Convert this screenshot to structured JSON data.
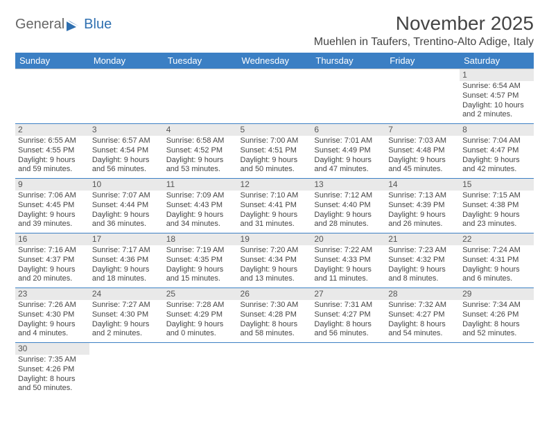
{
  "logo": {
    "text1": "General",
    "text2": "Blue"
  },
  "title": "November 2025",
  "location": "Muehlen in Taufers, Trentino-Alto Adige, Italy",
  "colors": {
    "header_bg": "#3b7fc4",
    "header_text": "#ffffff",
    "daynum_bg": "#e9e9e9",
    "row_border": "#3b7fc4",
    "text": "#444444"
  },
  "day_headers": [
    "Sunday",
    "Monday",
    "Tuesday",
    "Wednesday",
    "Thursday",
    "Friday",
    "Saturday"
  ],
  "weeks": [
    [
      null,
      null,
      null,
      null,
      null,
      null,
      {
        "n": "1",
        "sr": "Sunrise: 6:54 AM",
        "ss": "Sunset: 4:57 PM",
        "dl1": "Daylight: 10 hours",
        "dl2": "and 2 minutes."
      }
    ],
    [
      {
        "n": "2",
        "sr": "Sunrise: 6:55 AM",
        "ss": "Sunset: 4:55 PM",
        "dl1": "Daylight: 9 hours",
        "dl2": "and 59 minutes."
      },
      {
        "n": "3",
        "sr": "Sunrise: 6:57 AM",
        "ss": "Sunset: 4:54 PM",
        "dl1": "Daylight: 9 hours",
        "dl2": "and 56 minutes."
      },
      {
        "n": "4",
        "sr": "Sunrise: 6:58 AM",
        "ss": "Sunset: 4:52 PM",
        "dl1": "Daylight: 9 hours",
        "dl2": "and 53 minutes."
      },
      {
        "n": "5",
        "sr": "Sunrise: 7:00 AM",
        "ss": "Sunset: 4:51 PM",
        "dl1": "Daylight: 9 hours",
        "dl2": "and 50 minutes."
      },
      {
        "n": "6",
        "sr": "Sunrise: 7:01 AM",
        "ss": "Sunset: 4:49 PM",
        "dl1": "Daylight: 9 hours",
        "dl2": "and 47 minutes."
      },
      {
        "n": "7",
        "sr": "Sunrise: 7:03 AM",
        "ss": "Sunset: 4:48 PM",
        "dl1": "Daylight: 9 hours",
        "dl2": "and 45 minutes."
      },
      {
        "n": "8",
        "sr": "Sunrise: 7:04 AM",
        "ss": "Sunset: 4:47 PM",
        "dl1": "Daylight: 9 hours",
        "dl2": "and 42 minutes."
      }
    ],
    [
      {
        "n": "9",
        "sr": "Sunrise: 7:06 AM",
        "ss": "Sunset: 4:45 PM",
        "dl1": "Daylight: 9 hours",
        "dl2": "and 39 minutes."
      },
      {
        "n": "10",
        "sr": "Sunrise: 7:07 AM",
        "ss": "Sunset: 4:44 PM",
        "dl1": "Daylight: 9 hours",
        "dl2": "and 36 minutes."
      },
      {
        "n": "11",
        "sr": "Sunrise: 7:09 AM",
        "ss": "Sunset: 4:43 PM",
        "dl1": "Daylight: 9 hours",
        "dl2": "and 34 minutes."
      },
      {
        "n": "12",
        "sr": "Sunrise: 7:10 AM",
        "ss": "Sunset: 4:41 PM",
        "dl1": "Daylight: 9 hours",
        "dl2": "and 31 minutes."
      },
      {
        "n": "13",
        "sr": "Sunrise: 7:12 AM",
        "ss": "Sunset: 4:40 PM",
        "dl1": "Daylight: 9 hours",
        "dl2": "and 28 minutes."
      },
      {
        "n": "14",
        "sr": "Sunrise: 7:13 AM",
        "ss": "Sunset: 4:39 PM",
        "dl1": "Daylight: 9 hours",
        "dl2": "and 26 minutes."
      },
      {
        "n": "15",
        "sr": "Sunrise: 7:15 AM",
        "ss": "Sunset: 4:38 PM",
        "dl1": "Daylight: 9 hours",
        "dl2": "and 23 minutes."
      }
    ],
    [
      {
        "n": "16",
        "sr": "Sunrise: 7:16 AM",
        "ss": "Sunset: 4:37 PM",
        "dl1": "Daylight: 9 hours",
        "dl2": "and 20 minutes."
      },
      {
        "n": "17",
        "sr": "Sunrise: 7:17 AM",
        "ss": "Sunset: 4:36 PM",
        "dl1": "Daylight: 9 hours",
        "dl2": "and 18 minutes."
      },
      {
        "n": "18",
        "sr": "Sunrise: 7:19 AM",
        "ss": "Sunset: 4:35 PM",
        "dl1": "Daylight: 9 hours",
        "dl2": "and 15 minutes."
      },
      {
        "n": "19",
        "sr": "Sunrise: 7:20 AM",
        "ss": "Sunset: 4:34 PM",
        "dl1": "Daylight: 9 hours",
        "dl2": "and 13 minutes."
      },
      {
        "n": "20",
        "sr": "Sunrise: 7:22 AM",
        "ss": "Sunset: 4:33 PM",
        "dl1": "Daylight: 9 hours",
        "dl2": "and 11 minutes."
      },
      {
        "n": "21",
        "sr": "Sunrise: 7:23 AM",
        "ss": "Sunset: 4:32 PM",
        "dl1": "Daylight: 9 hours",
        "dl2": "and 8 minutes."
      },
      {
        "n": "22",
        "sr": "Sunrise: 7:24 AM",
        "ss": "Sunset: 4:31 PM",
        "dl1": "Daylight: 9 hours",
        "dl2": "and 6 minutes."
      }
    ],
    [
      {
        "n": "23",
        "sr": "Sunrise: 7:26 AM",
        "ss": "Sunset: 4:30 PM",
        "dl1": "Daylight: 9 hours",
        "dl2": "and 4 minutes."
      },
      {
        "n": "24",
        "sr": "Sunrise: 7:27 AM",
        "ss": "Sunset: 4:30 PM",
        "dl1": "Daylight: 9 hours",
        "dl2": "and 2 minutes."
      },
      {
        "n": "25",
        "sr": "Sunrise: 7:28 AM",
        "ss": "Sunset: 4:29 PM",
        "dl1": "Daylight: 9 hours",
        "dl2": "and 0 minutes."
      },
      {
        "n": "26",
        "sr": "Sunrise: 7:30 AM",
        "ss": "Sunset: 4:28 PM",
        "dl1": "Daylight: 8 hours",
        "dl2": "and 58 minutes."
      },
      {
        "n": "27",
        "sr": "Sunrise: 7:31 AM",
        "ss": "Sunset: 4:27 PM",
        "dl1": "Daylight: 8 hours",
        "dl2": "and 56 minutes."
      },
      {
        "n": "28",
        "sr": "Sunrise: 7:32 AM",
        "ss": "Sunset: 4:27 PM",
        "dl1": "Daylight: 8 hours",
        "dl2": "and 54 minutes."
      },
      {
        "n": "29",
        "sr": "Sunrise: 7:34 AM",
        "ss": "Sunset: 4:26 PM",
        "dl1": "Daylight: 8 hours",
        "dl2": "and 52 minutes."
      }
    ],
    [
      {
        "n": "30",
        "sr": "Sunrise: 7:35 AM",
        "ss": "Sunset: 4:26 PM",
        "dl1": "Daylight: 8 hours",
        "dl2": "and 50 minutes."
      },
      null,
      null,
      null,
      null,
      null,
      null
    ]
  ]
}
